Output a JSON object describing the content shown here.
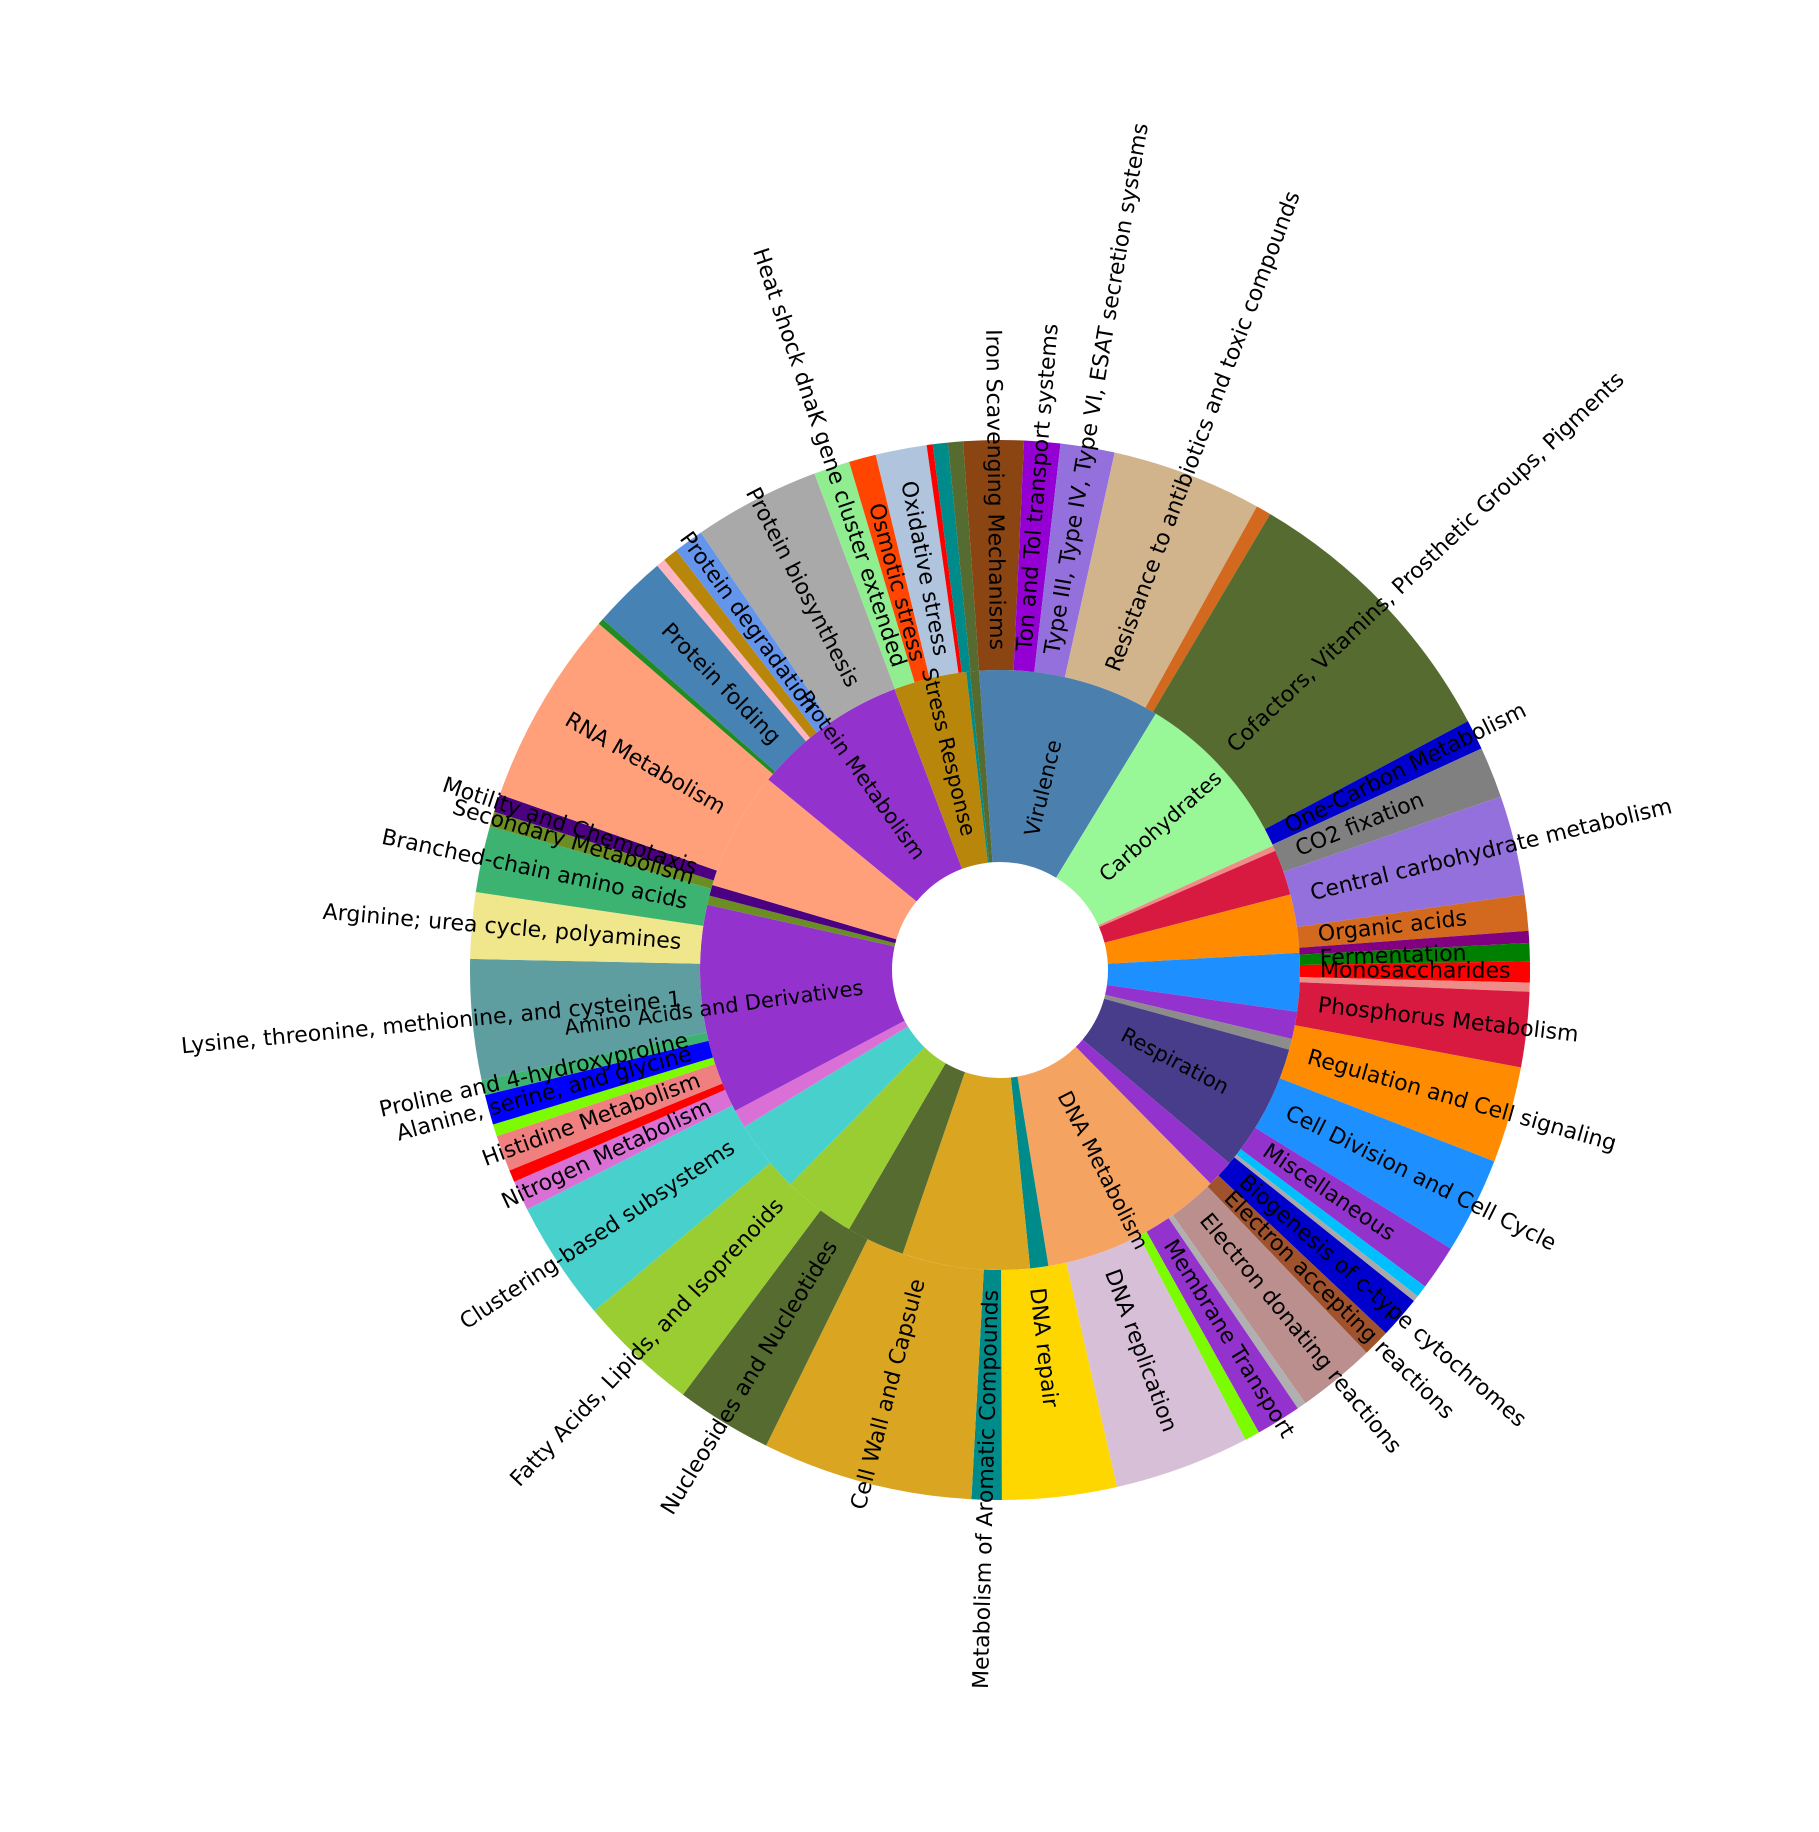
{
  "chart_data": {
    "type": "sunburst",
    "title": "",
    "unit": "percent of circle (estimated)",
    "inner": [
      {
        "label": "Virulence",
        "value": 10.0,
        "color": "#4a7fae"
      },
      {
        "label": "Carbohydrates",
        "value": 9.7,
        "color": "#98f898"
      },
      {
        "label": "",
        "value": 0.3,
        "color": "#f08c88"
      },
      {
        "label": "",
        "value": 2.5,
        "color": "#d81a40"
      },
      {
        "label": "",
        "value": 3.2,
        "color": "#ff8c00"
      },
      {
        "label": "",
        "value": 3.2,
        "color": "#1e8fff"
      },
      {
        "label": "",
        "value": 1.5,
        "color": "#9432cd"
      },
      {
        "label": "",
        "value": 0.6,
        "color": "#8c8c8c"
      },
      {
        "label": "Respiration",
        "value": 7.0,
        "color": "#473d8b"
      },
      {
        "label": "",
        "value": 1.5,
        "color": "#9432cd"
      },
      {
        "label": "DNA Metabolism",
        "value": 10.0,
        "color": "#f4a460"
      },
      {
        "label": "",
        "value": 1.0,
        "color": "#008b8b"
      },
      {
        "label": "",
        "value": 7.0,
        "color": "#daa520"
      },
      {
        "label": "",
        "value": 3.2,
        "color": "#556b2f"
      },
      {
        "label": "",
        "value": 4.0,
        "color": "#9acd32"
      },
      {
        "label": "",
        "value": 4.0,
        "color": "#48d1cc"
      },
      {
        "label": "",
        "value": 1.0,
        "color": "#da70d6"
      },
      {
        "label": "Amino Acids and Derivatives",
        "value": 11.5,
        "color": "#9432cd"
      },
      {
        "label": "",
        "value": 0.5,
        "color": "#6b8e23"
      },
      {
        "label": "",
        "value": 0.6,
        "color": "#4b0082"
      },
      {
        "label": "",
        "value": 6.5,
        "color": "#ffa07a"
      },
      {
        "label": "Protein Metabolism",
        "value": 8.5,
        "color": "#9432cd"
      },
      {
        "label": "Stress Response",
        "value": 4.0,
        "color": "#b8860b"
      },
      {
        "label": "",
        "value": 0.2,
        "color": "#008b8b"
      },
      {
        "label": "",
        "value": 0.5,
        "color": "#556b2f"
      }
    ],
    "outer": [
      {
        "label": "Iron Scavenging Mechanisms",
        "value": 2.0,
        "color": "#8b4513"
      },
      {
        "label": "Ton and Tol transport systems",
        "value": 1.2,
        "color": "#9400d3"
      },
      {
        "label": "Type III, Type IV, Type VI, ESAT secretion systems",
        "value": 1.8,
        "color": "#9370db"
      },
      {
        "label": "Resistance to antibiotics and toxic compounds",
        "value": 5.0,
        "color": "#d2b48c"
      },
      {
        "label": "",
        "value": 0.5,
        "color": "#d2691e"
      },
      {
        "label": "Cofactors, Vitamins, Prosthetic Groups, Pigments",
        "value": 9.5,
        "color": "#556b2f"
      },
      {
        "label": "One-Carbon Metabolism",
        "value": 1.0,
        "color": "#0000cd"
      },
      {
        "label": "CO2 fixation",
        "value": 1.7,
        "color": "#808080"
      },
      {
        "label": "Central carbohydrate metabolism",
        "value": 3.3,
        "color": "#9370db"
      },
      {
        "label": "Organic acids",
        "value": 1.2,
        "color": "#d2691e"
      },
      {
        "label": "",
        "value": 0.4,
        "color": "#800080"
      },
      {
        "label": "Fermentation",
        "value": 0.6,
        "color": "#008000"
      },
      {
        "label": "Monosaccharides",
        "value": 0.7,
        "color": "#ff0000"
      },
      {
        "label": "",
        "value": 0.3,
        "color": "#f08c88"
      },
      {
        "label": "Phosphorus Metabolism",
        "value": 2.5,
        "color": "#d81a40"
      },
      {
        "label": "Regulation and Cell signaling",
        "value": 3.2,
        "color": "#ff8c00"
      },
      {
        "label": "Cell Division and Cell Cycle",
        "value": 3.2,
        "color": "#1e8fff"
      },
      {
        "label": "Miscellaneous",
        "value": 1.5,
        "color": "#9432cd"
      },
      {
        "label": "",
        "value": 0.4,
        "color": "#00bfff"
      },
      {
        "label": "",
        "value": 0.2,
        "color": "#a9a9a9"
      },
      {
        "label": "Biogenesis of c-type cytochromes",
        "value": 1.4,
        "color": "#0000cd"
      },
      {
        "label": "Electron accepting reactions",
        "value": 0.9,
        "color": "#a0522d"
      },
      {
        "label": "Electron donating reactions",
        "value": 2.6,
        "color": "#bc8f8f"
      },
      {
        "label": "",
        "value": 0.3,
        "color": "#b0b0b0"
      },
      {
        "label": "Membrane Transport",
        "value": 1.5,
        "color": "#9432cd"
      },
      {
        "label": "",
        "value": 0.5,
        "color": "#7cfc00"
      },
      {
        "label": "DNA replication",
        "value": 4.5,
        "color": "#d8bfd8"
      },
      {
        "label": "DNA repair",
        "value": 3.8,
        "color": "#ffd700"
      },
      {
        "label": "Metabolism of Aromatic Compounds",
        "value": 1.0,
        "color": "#008b8b"
      },
      {
        "label": "Cell Wall and Capsule",
        "value": 7.0,
        "color": "#daa520"
      },
      {
        "label": "Nucleosides and Nucleotides",
        "value": 3.2,
        "color": "#556b2f"
      },
      {
        "label": "Fatty Acids, Lipids, and Isoprenoids",
        "value": 4.0,
        "color": "#9acd32"
      },
      {
        "label": "Clustering-based subsystems",
        "value": 4.0,
        "color": "#48d1cc"
      },
      {
        "label": "Nitrogen Metabolism",
        "value": 1.0,
        "color": "#da70d6"
      },
      {
        "label": "",
        "value": 0.4,
        "color": "#ff0000"
      },
      {
        "label": "Histidine Metabolism",
        "value": 1.2,
        "color": "#f08080"
      },
      {
        "label": "",
        "value": 0.4,
        "color": "#7cfc00"
      },
      {
        "label": "Alanine, serine, and glycine",
        "value": 1.0,
        "color": "#0000ff"
      },
      {
        "label": "Proline and 4-hydroxyproline",
        "value": 0.5,
        "color": "#3cb371"
      },
      {
        "label": "Lysine, threonine, methionine, and cysteine.1",
        "value": 4.0,
        "color": "#5f9ea0"
      },
      {
        "label": "Arginine; urea cycle, polyamines",
        "value": 2.2,
        "color": "#f0e68c"
      },
      {
        "label": "Branched-chain amino acids",
        "value": 2.2,
        "color": "#3cb371"
      },
      {
        "label": "Secondary Metabolism",
        "value": 0.5,
        "color": "#6b8e23"
      },
      {
        "label": "Motility and Chemotaxis",
        "value": 0.6,
        "color": "#4b0082"
      },
      {
        "label": "RNA Metabolism",
        "value": 6.5,
        "color": "#ffa07a"
      },
      {
        "label": "",
        "value": 0.2,
        "color": "#228b22"
      },
      {
        "label": "Protein folding",
        "value": 2.5,
        "color": "#4682b4"
      },
      {
        "label": "",
        "value": 0.3,
        "color": "#ffb6c1"
      },
      {
        "label": "",
        "value": 0.5,
        "color": "#b8860b"
      },
      {
        "label": "Protein degradation",
        "value": 1.0,
        "color": "#6495ed"
      },
      {
        "label": "Protein biosynthesis",
        "value": 4.2,
        "color": "#a9a9a9"
      },
      {
        "label": "Heat shock dnaK gene cluster extended",
        "value": 1.2,
        "color": "#90ee90"
      },
      {
        "label": "Osmotic stress",
        "value": 0.9,
        "color": "#ff4500"
      },
      {
        "label": "Oxidative stress",
        "value": 1.7,
        "color": "#b0c4de"
      },
      {
        "label": "",
        "value": 0.2,
        "color": "#ff0000"
      },
      {
        "label": "",
        "value": 0.5,
        "color": "#008b8b"
      },
      {
        "label": "",
        "value": 0.5,
        "color": "#556b2f"
      }
    ]
  }
}
